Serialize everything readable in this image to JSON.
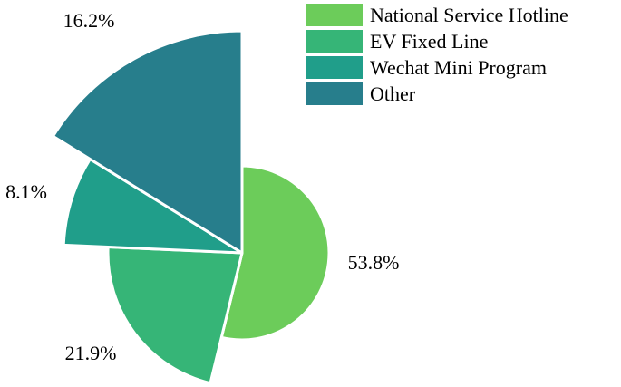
{
  "chart_data": {
    "type": "pie",
    "variant": "rose",
    "title": "",
    "legend_position": "top-right",
    "slices": [
      {
        "name": "National Service Hotline",
        "value": 53.8,
        "label": "53.8%",
        "color": "#6ccc5a"
      },
      {
        "name": "EV Fixed Line",
        "value": 21.9,
        "label": "21.9%",
        "color": "#36b577"
      },
      {
        "name": "Wechat Mini Program",
        "value": 8.1,
        "label": "8.1%",
        "color": "#209e8a"
      },
      {
        "name": "Other",
        "value": 16.2,
        "label": "16.2%",
        "color": "#277e8c"
      }
    ]
  }
}
